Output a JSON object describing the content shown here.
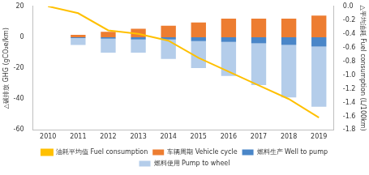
{
  "chart_data": {
    "type": "bar",
    "stacked": true,
    "grid": false,
    "legend": "bottom",
    "y_label": "△碳排放 GHG (gCO₂e/km)",
    "y2_label": "△平均油耗 Fuel consumption (L/100km)",
    "categories": [
      "2010",
      "2011",
      "2012",
      "2013",
      "2014",
      "2015",
      "2016",
      "2017",
      "2018",
      "2019"
    ],
    "ylim": [
      -60,
      20
    ],
    "yticks": [
      -60,
      -40,
      -20,
      0,
      20
    ],
    "y2lim": [
      -1.8,
      0
    ],
    "y2ticks": [
      -1.8,
      -1.6,
      -1.4,
      -1.2,
      {
        "value": -1,
        "label": "-1.0"
      },
      -0.8,
      -0.6,
      -0.4,
      -0.2,
      {
        "value": 0,
        "label": "0.0"
      }
    ],
    "series": [
      {
        "name": "车辆周期 Vehicle cycle",
        "color": "#ED7D31",
        "type": "bar",
        "values": [
          0,
          1.5,
          3.5,
          5.5,
          7.5,
          9.5,
          12,
          12,
          12,
          14
        ]
      },
      {
        "name": "燃料生产 Well to pump",
        "color": "#4A86C8",
        "type": "bar",
        "values": [
          0,
          -0.5,
          -1,
          -1.5,
          -1.5,
          -2.5,
          -3,
          -4,
          -5,
          -6
        ]
      },
      {
        "name": "燃料使用 Pump to wheel",
        "color": "#B4CDEA",
        "type": "bar",
        "values": [
          0,
          -4.5,
          -9,
          -8.5,
          -12.5,
          -17.5,
          -22,
          -27,
          -34,
          -39
        ]
      },
      {
        "name": "油耗平均值 Fuel consumption",
        "color": "#FFC000",
        "type": "line",
        "axis": "y2",
        "marker": "none",
        "values": [
          0,
          -0.1,
          -0.35,
          -0.4,
          -0.5,
          -0.75,
          -0.95,
          -1.15,
          -1.35,
          -1.62
        ]
      }
    ]
  }
}
